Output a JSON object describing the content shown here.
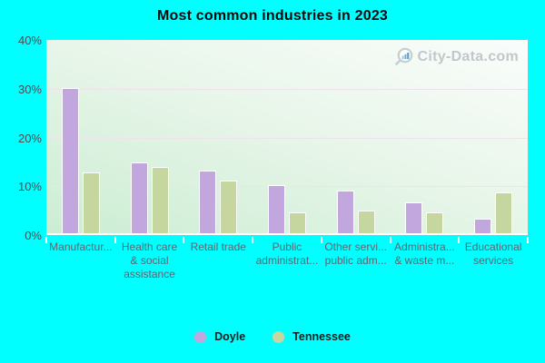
{
  "page": {
    "background_color": "#00ffff"
  },
  "header": {
    "title": "Most common industries in 2023"
  },
  "watermark": {
    "text": "City-Data.com",
    "icon": "magnifier-barchart-icon",
    "text_color": "#bcc2c6"
  },
  "chart_data": {
    "type": "bar",
    "title": "Most common industries in 2023",
    "xlabel": "",
    "ylabel": "",
    "ylim": [
      0,
      40
    ],
    "grid": "horizontal",
    "legend_position": "bottom",
    "yticks": [
      {
        "value": 40,
        "label": "40%"
      },
      {
        "value": 30,
        "label": "30%"
      },
      {
        "value": 20,
        "label": "20%"
      },
      {
        "value": 10,
        "label": "10%"
      },
      {
        "value": 0,
        "label": "0%"
      }
    ],
    "categories": [
      "Manufactur...",
      "Health care & social assistance",
      "Retail trade",
      "Public administrat...",
      "Other servi... public adm...",
      "Administra... & waste m...",
      "Educational services"
    ],
    "category_label_lines": [
      [
        "Manufactur..."
      ],
      [
        "Health care",
        "& social",
        "assistance"
      ],
      [
        "Retail trade"
      ],
      [
        "Public",
        "administrat..."
      ],
      [
        "Other servi...",
        "public adm..."
      ],
      [
        "Administra...",
        "& waste m..."
      ],
      [
        "Educational",
        "services"
      ]
    ],
    "series": [
      {
        "name": "Doyle",
        "color": "#c1a7dd",
        "values": [
          29.8,
          14.6,
          12.8,
          9.9,
          8.8,
          6.3,
          3.0
        ]
      },
      {
        "name": "Tennessee",
        "color": "#c6d69f",
        "values": [
          12.4,
          13.5,
          10.8,
          4.2,
          4.7,
          4.2,
          8.3
        ]
      }
    ]
  }
}
